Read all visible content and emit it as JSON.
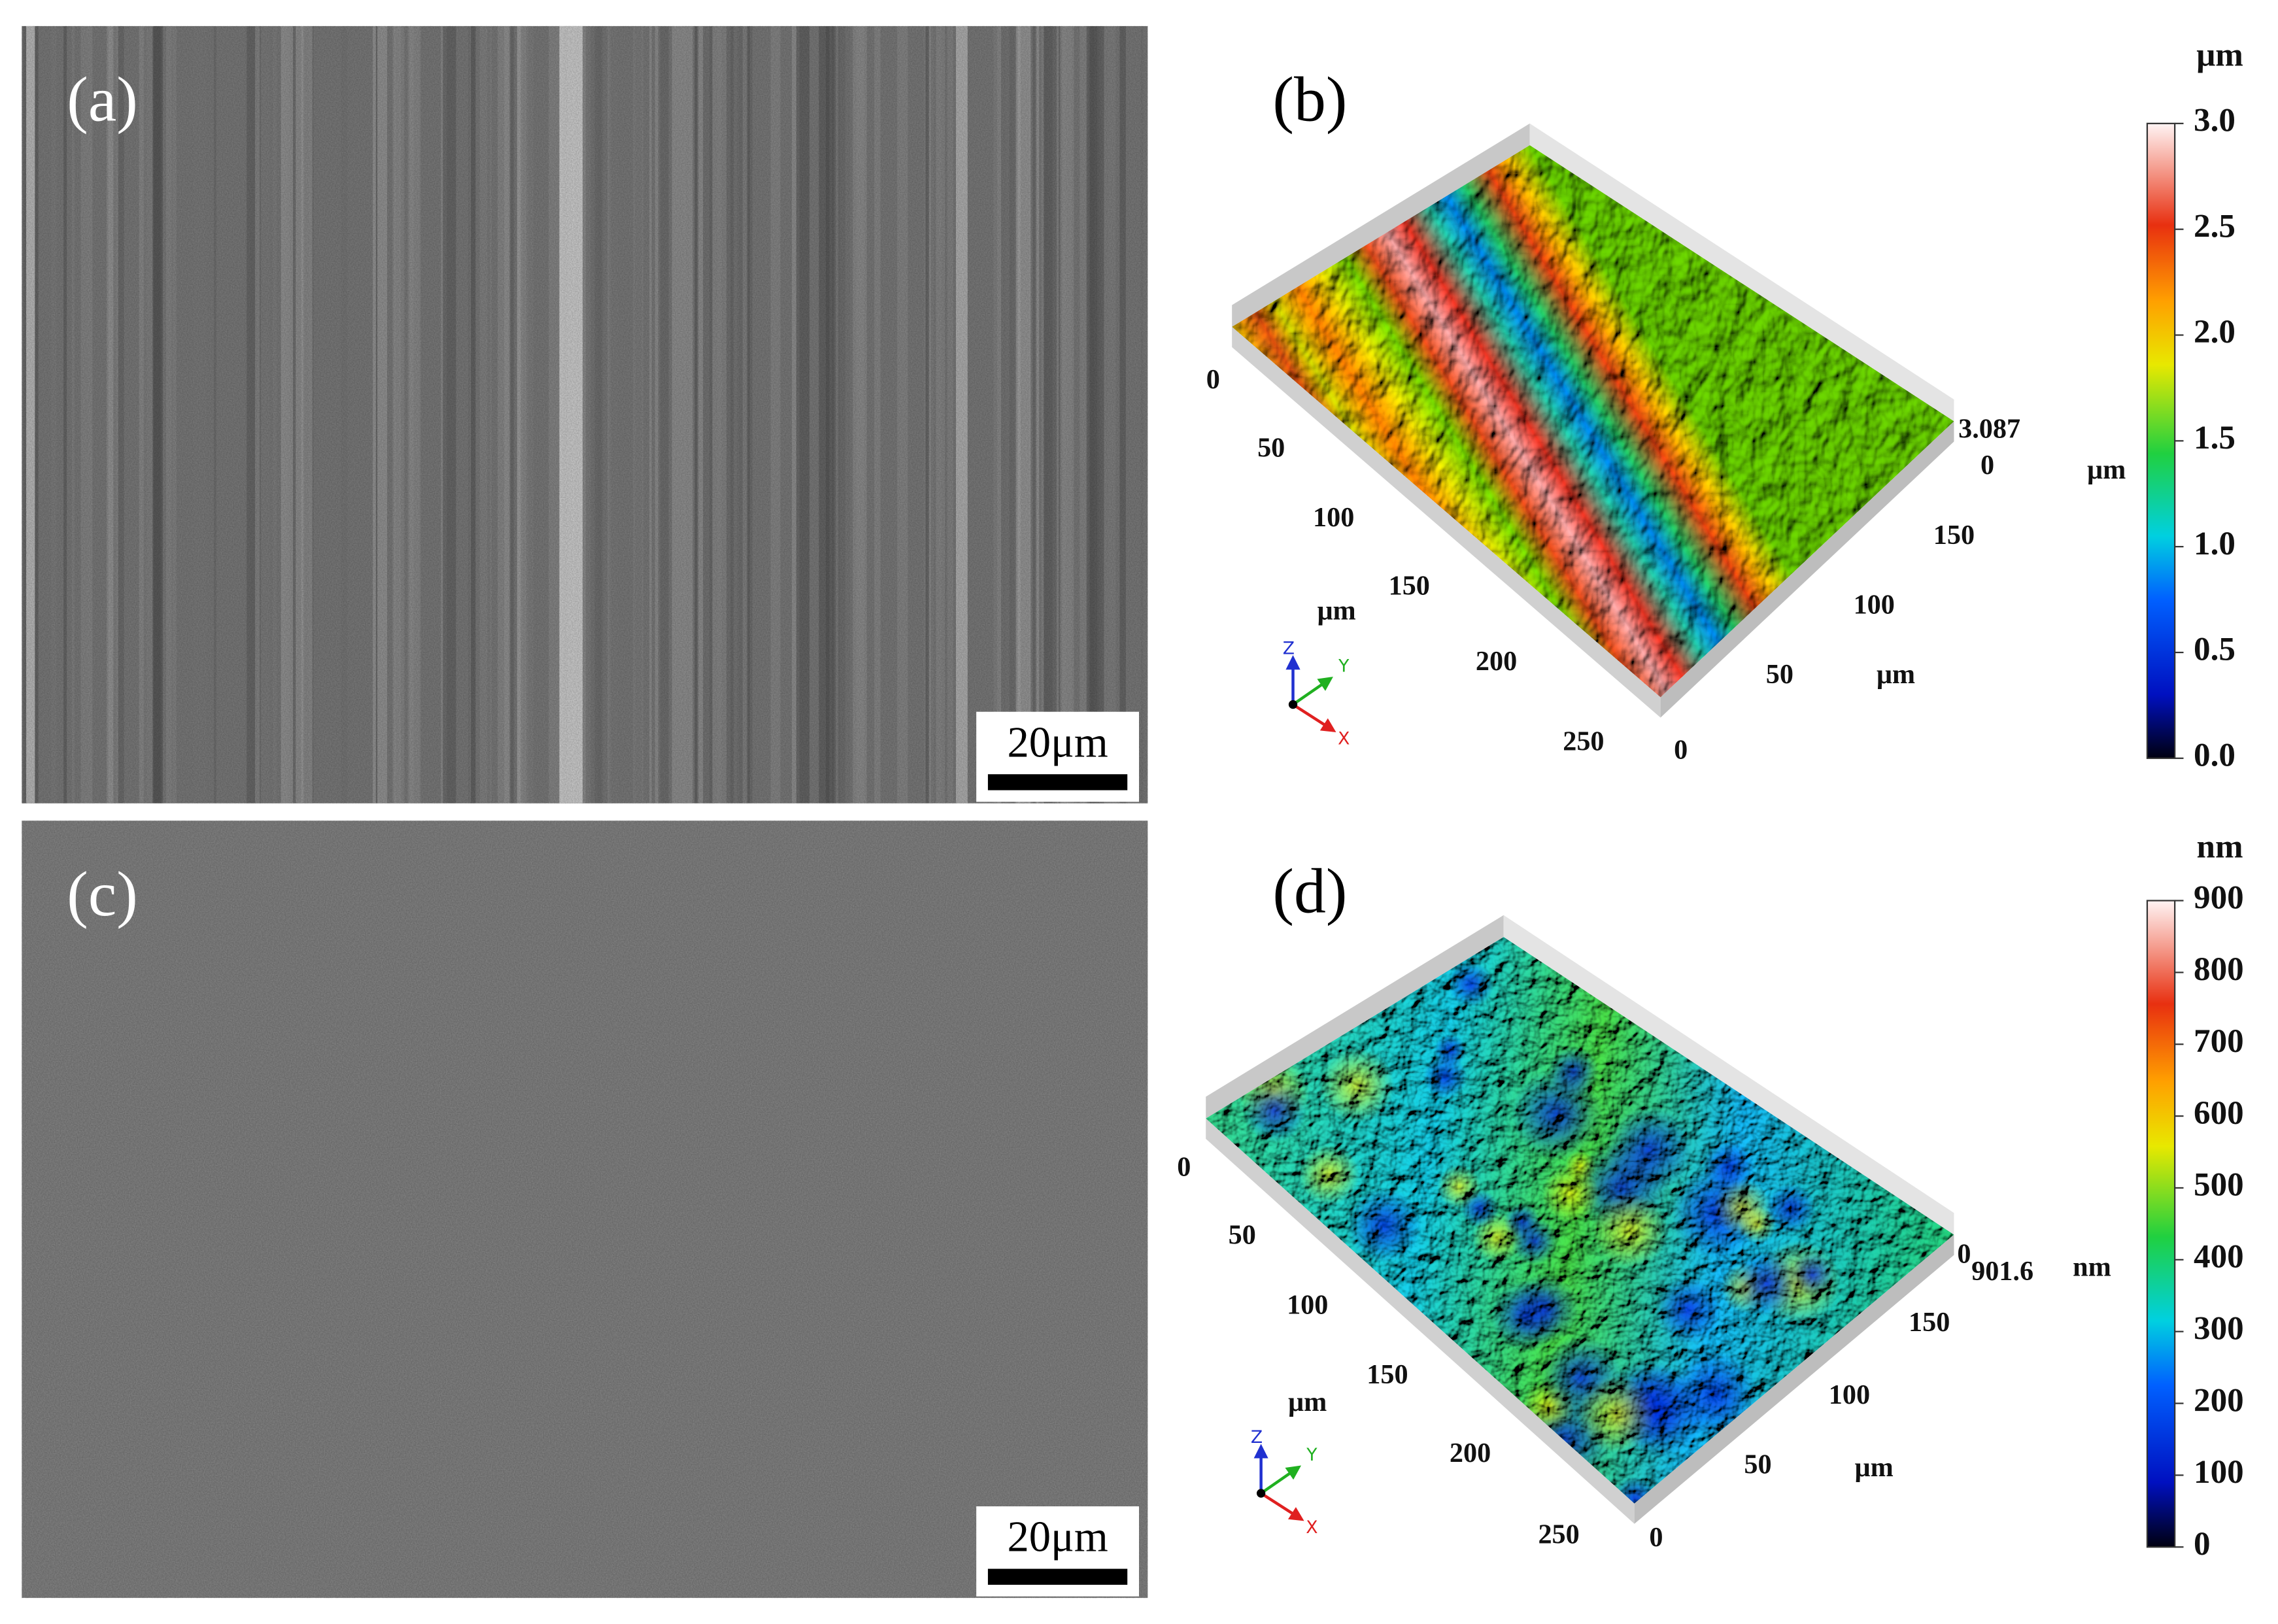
{
  "panels": [
    {
      "label": "(a)",
      "scale_bar": "20μm"
    },
    {
      "label": "(b)",
      "colorbar_unit": "μm",
      "colorbar_ticks": [
        "3.0",
        "2.5",
        "2.0",
        "1.5",
        "1.0",
        "0.5",
        "0.0"
      ],
      "z_max": "3.087",
      "z_min": "0",
      "z_unit": "μm",
      "x_ticks": [
        "0",
        "50",
        "100",
        "150",
        "200",
        "250"
      ],
      "x_unit": "μm",
      "y_ticks": [
        "0",
        "50",
        "100",
        "150"
      ],
      "y_unit": "μm",
      "axes": [
        "Z",
        "Y",
        "X"
      ]
    },
    {
      "label": "(c)",
      "scale_bar": "20μm"
    },
    {
      "label": "(d)",
      "colorbar_unit": "nm",
      "colorbar_ticks": [
        "900",
        "800",
        "700",
        "600",
        "500",
        "400",
        "300",
        "200",
        "100",
        "0"
      ],
      "z_max": "901.6",
      "z_min": "0",
      "z_unit": "nm",
      "x_ticks": [
        "0",
        "50",
        "100",
        "150",
        "200",
        "250"
      ],
      "x_unit": "μm",
      "y_ticks": [
        "0",
        "50",
        "100",
        "150"
      ],
      "y_unit": "μm",
      "axes": [
        "Z",
        "Y",
        "X"
      ]
    }
  ]
}
